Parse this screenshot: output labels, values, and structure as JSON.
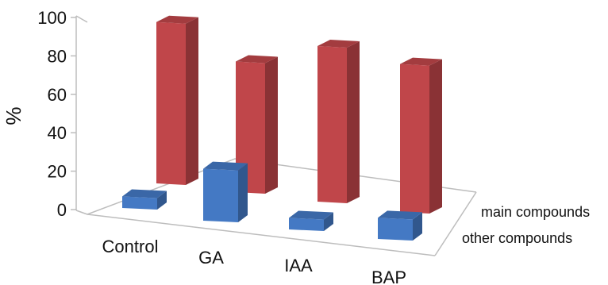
{
  "chart_data": {
    "type": "bar",
    "title": "",
    "xlabel": "",
    "ylabel": "%",
    "categories": [
      "Control",
      "GA",
      "IAA",
      "BAP"
    ],
    "series": [
      {
        "name": "main compounds",
        "values": [
          84,
          68,
          81,
          77
        ],
        "color": "#c0464a"
      },
      {
        "name": "other compounds",
        "values": [
          6,
          27,
          6,
          11
        ],
        "color": "#4479c4"
      }
    ],
    "yticks": [
      "0",
      "20",
      "40",
      "60",
      "80",
      "100"
    ],
    "ylim": [
      0,
      100
    ],
    "grid": false,
    "legend": "depth-axis-labels"
  }
}
